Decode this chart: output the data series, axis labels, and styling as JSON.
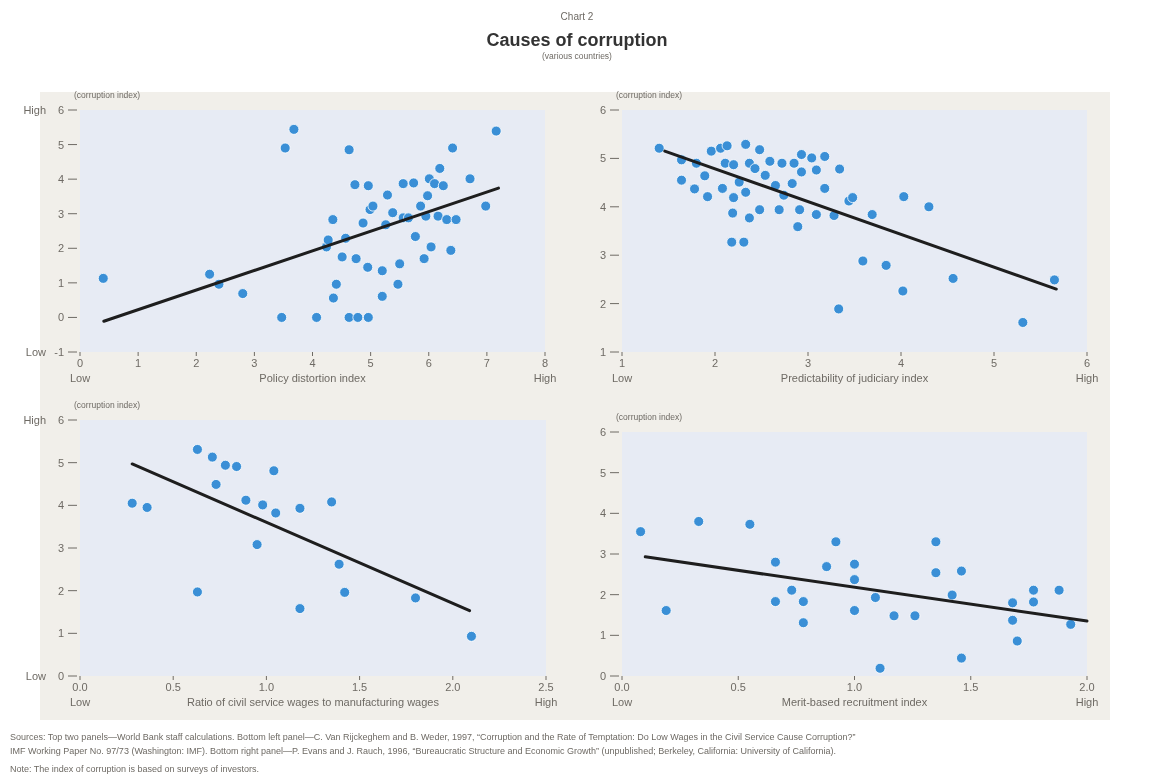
{
  "chart_data": [
    {
      "type": "scatter",
      "title": "Causes of corruption",
      "subtitle": "(various countries)",
      "annotations": [
        "Chart 2",
        "High",
        "Low",
        "Low",
        "High"
      ],
      "xlabel": "Policy distortion index",
      "ylabel": "(corruption index)",
      "xlim": [
        0,
        8
      ],
      "xticks": [
        0,
        1,
        2,
        3,
        4,
        5,
        6,
        7,
        8
      ],
      "ylim": [
        -1,
        6
      ],
      "yticks": [
        -1,
        0,
        1,
        2,
        3,
        4,
        5,
        6
      ],
      "grid": false,
      "series": [
        {
          "marker": "circle",
          "color": "#3a8fd6",
          "x": [
            0.4,
            2.23,
            2.39,
            2.8,
            3.47,
            3.53,
            3.68,
            4.07,
            4.35,
            4.24,
            4.27,
            4.57,
            4.51,
            4.41,
            4.36,
            4.63,
            4.63,
            4.78,
            4.96,
            4.73,
            4.96,
            4.75,
            4.95,
            4.87,
            4.99,
            5.04,
            5.2,
            5.2,
            5.26,
            5.29,
            5.38,
            5.47,
            5.5,
            5.56,
            5.56,
            5.65,
            5.74,
            5.77,
            5.92,
            5.86,
            5.95,
            5.98,
            6.01,
            6.04,
            6.1,
            6.19,
            6.25,
            6.16,
            6.31,
            6.47,
            6.38,
            6.41,
            6.71,
            6.98,
            7.16
          ],
          "values": [
            1.13,
            1.25,
            0.96,
            0.69,
            0.0,
            4.9,
            5.44,
            0.0,
            2.83,
            2.04,
            2.24,
            2.29,
            1.75,
            0.96,
            0.56,
            4.85,
            0.0,
            0.0,
            0.0,
            3.84,
            3.81,
            1.7,
            1.45,
            2.73,
            3.12,
            3.22,
            1.35,
            0.61,
            2.68,
            3.54,
            3.03,
            0.96,
            1.55,
            3.87,
            2.88,
            2.88,
            3.89,
            2.34,
            1.7,
            3.22,
            2.93,
            3.52,
            4.01,
            2.04,
            3.87,
            4.31,
            3.81,
            2.93,
            2.83,
            2.83,
            1.94,
            4.9,
            4.01,
            3.22,
            5.39
          ]
        },
        {
          "type": "line",
          "line_style": "solid",
          "color": "#1e1e1e",
          "x": [
            0.41,
            7.2
          ],
          "values": [
            -0.11,
            3.74
          ]
        }
      ]
    },
    {
      "type": "scatter",
      "annotations": [
        "Low",
        "High"
      ],
      "xlabel": "Predictability of judiciary index",
      "ylabel": "(corruption index)",
      "xlim": [
        1,
        6
      ],
      "xticks": [
        1,
        2,
        3,
        4,
        5,
        6
      ],
      "ylim": [
        1,
        6
      ],
      "yticks": [
        1,
        2,
        3,
        4,
        5,
        6
      ],
      "grid": false,
      "series": [
        {
          "marker": "circle",
          "color": "#3a8fd6",
          "x": [
            1.4,
            1.64,
            1.64,
            1.8,
            1.78,
            1.89,
            1.92,
            1.96,
            2.06,
            2.13,
            2.11,
            2.2,
            2.08,
            2.2,
            2.19,
            2.18,
            2.31,
            2.26,
            2.33,
            2.33,
            2.48,
            2.37,
            2.43,
            2.54,
            2.37,
            2.48,
            2.59,
            2.72,
            2.65,
            2.74,
            2.69,
            2.83,
            2.85,
            2.93,
            2.93,
            3.04,
            3.09,
            3.18,
            3.18,
            2.91,
            2.89,
            3.09,
            3.28,
            3.34,
            3.44,
            3.48,
            3.69,
            3.59,
            3.84,
            3.33,
            4.02,
            4.03,
            4.3,
            4.56,
            5.31,
            5.65
          ],
          "values": [
            5.21,
            4.97,
            4.55,
            4.9,
            4.37,
            4.64,
            4.21,
            5.15,
            5.21,
            5.26,
            4.9,
            4.87,
            4.38,
            4.19,
            3.87,
            3.27,
            3.27,
            4.51,
            4.3,
            5.29,
            5.18,
            4.9,
            4.79,
            4.65,
            3.77,
            3.94,
            4.94,
            4.9,
            4.44,
            4.24,
            3.94,
            4.48,
            4.9,
            4.72,
            5.08,
            5.01,
            4.76,
            5.04,
            4.38,
            3.94,
            3.59,
            3.84,
            3.82,
            4.78,
            4.12,
            4.19,
            3.84,
            2.88,
            2.79,
            1.89,
            2.26,
            4.21,
            4.0,
            2.52,
            1.61,
            2.49
          ]
        },
        {
          "type": "line",
          "line_style": "solid",
          "color": "#1e1e1e",
          "x": [
            1.46,
            5.67
          ],
          "values": [
            5.15,
            2.3
          ]
        }
      ]
    },
    {
      "type": "scatter",
      "annotations": [
        "High",
        "Low",
        "Low",
        "High"
      ],
      "xlabel": "Ratio of civil service wages to manufacturing wages",
      "ylabel": "(corruption index)",
      "xlim": [
        0,
        2.5
      ],
      "xticks": [
        {
          "value": 0,
          "label": "0.0"
        },
        0.5,
        {
          "value": 1,
          "label": "1.0"
        },
        1.5,
        {
          "value": 2,
          "label": "2.0"
        },
        2.5
      ],
      "ylim": [
        0,
        6
      ],
      "yticks": [
        0,
        1,
        2,
        3,
        4,
        5,
        6
      ],
      "grid": false,
      "series": [
        {
          "marker": "circle",
          "color": "#3a8fd6",
          "x": [
            0.28,
            0.36,
            0.63,
            0.71,
            0.78,
            0.84,
            0.73,
            0.63,
            0.89,
            0.98,
            1.05,
            1.04,
            0.95,
            1.18,
            1.18,
            1.35,
            1.39,
            1.42,
            1.8,
            2.1
          ],
          "values": [
            4.05,
            3.95,
            5.31,
            5.13,
            4.94,
            4.91,
            4.49,
            1.97,
            4.12,
            4.01,
            3.82,
            4.81,
            3.08,
            3.93,
            1.58,
            4.08,
            2.62,
            1.96,
            1.83,
            0.93
          ]
        },
        {
          "type": "line",
          "line_style": "solid",
          "color": "#1e1e1e",
          "x": [
            0.28,
            2.09
          ],
          "values": [
            4.97,
            1.53
          ]
        }
      ]
    },
    {
      "type": "scatter",
      "annotations": [
        "Low",
        "High",
        "Sources: Top two panels—World Bank staff calculations. Bottom left panel—C. Van Rijckeghem and B. Weder, 1997, “Corruption and the Rate of Temptation: Do Low Wages in the Civil Service Cause Corruption?”",
        "IMF Working Paper No. 97/73 (Washington: IMF). Bottom right panel—P. Evans and J. Rauch, 1996, “Bureaucratic Structure and Economic Growth” (unpublished; Berkeley, California: University of California).",
        "Note: The index of corruption is based on surveys of investors."
      ],
      "xlabel": "Merit-based recruitment index",
      "ylabel": "(corruption index)",
      "xlim": [
        0,
        2
      ],
      "xticks": [
        {
          "value": 0,
          "label": "0.0"
        },
        0.5,
        {
          "value": 1,
          "label": "1.0"
        },
        1.5,
        {
          "value": 2,
          "label": "2.0"
        }
      ],
      "ylim": [
        0,
        6
      ],
      "yticks": [
        0,
        1,
        2,
        3,
        4,
        5,
        6
      ],
      "grid": false,
      "series": [
        {
          "marker": "circle",
          "color": "#3a8fd6",
          "x": [
            0.08,
            0.19,
            0.33,
            0.55,
            0.66,
            0.66,
            0.73,
            0.78,
            0.78,
            0.88,
            0.92,
            1.0,
            1.0,
            1.0,
            1.09,
            1.11,
            1.17,
            1.26,
            1.35,
            1.35,
            1.42,
            1.46,
            1.46,
            1.68,
            1.68,
            1.7,
            1.77,
            1.77,
            1.88,
            1.93
          ],
          "values": [
            3.55,
            1.61,
            3.8,
            3.73,
            2.8,
            1.83,
            2.11,
            1.83,
            1.31,
            2.69,
            3.3,
            2.75,
            2.37,
            1.61,
            1.93,
            0.19,
            1.48,
            1.48,
            3.3,
            2.54,
            1.99,
            2.58,
            0.44,
            1.8,
            1.37,
            0.86,
            2.11,
            1.82,
            2.11,
            1.27
          ]
        },
        {
          "type": "line",
          "line_style": "solid",
          "color": "#1e1e1e",
          "x": [
            0.1,
            2.0
          ],
          "values": [
            2.93,
            1.35
          ]
        }
      ]
    }
  ]
}
